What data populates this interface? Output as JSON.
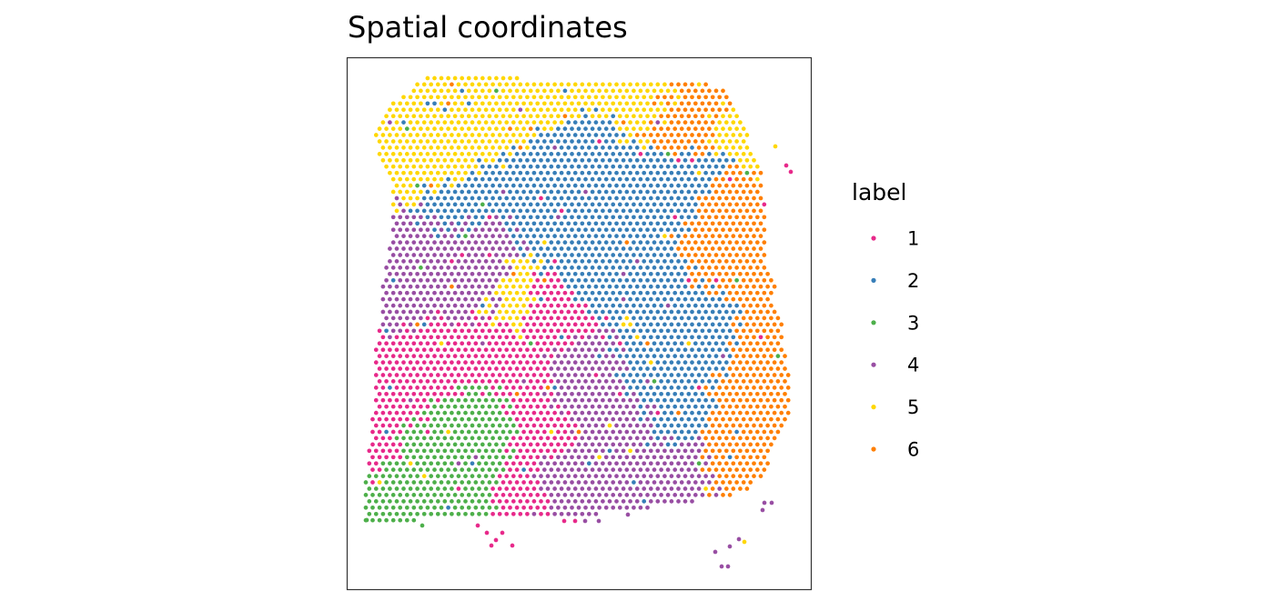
{
  "chart_data": {
    "type": "scatter",
    "title": "Spatial coordinates",
    "xlabel": "",
    "ylabel": "",
    "axes_visible": false,
    "grid": false,
    "legend": {
      "title": "label",
      "placement": "right"
    },
    "series": [
      {
        "name": "1",
        "color": "#E7298A"
      },
      {
        "name": "2",
        "color": "#377EB8"
      },
      {
        "name": "3",
        "color": "#4DAF4A"
      },
      {
        "name": "4",
        "color": "#984EA3"
      },
      {
        "name": "5",
        "color": "#FFD700"
      },
      {
        "name": "6",
        "color": "#FF7F00"
      }
    ],
    "spot_grid": {
      "x_range": [
        0,
        120
      ],
      "y_range": [
        0,
        144
      ],
      "rows": 75,
      "cols": 63
    }
  }
}
